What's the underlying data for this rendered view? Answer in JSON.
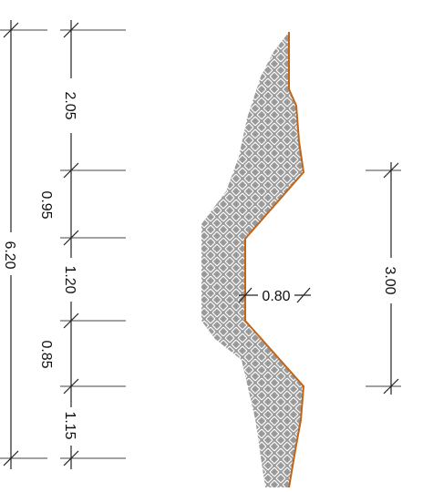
{
  "colors": {
    "background": "#ffffff",
    "dimension_line": "#222222",
    "extension_line": "#444444",
    "hatch_fill": "#9a9a9a",
    "hatch_pattern": "#ffffff",
    "edge_line": "#c0651a"
  },
  "left_dimensions": {
    "overall": "6.20",
    "segment_1": "2.05",
    "segment_2": "0.95",
    "segment_3": "1.20",
    "segment_4": "0.85",
    "segment_5": "1.15"
  },
  "section": {
    "inner_width": "0.80"
  },
  "right_dimension": {
    "length": "3.00"
  }
}
